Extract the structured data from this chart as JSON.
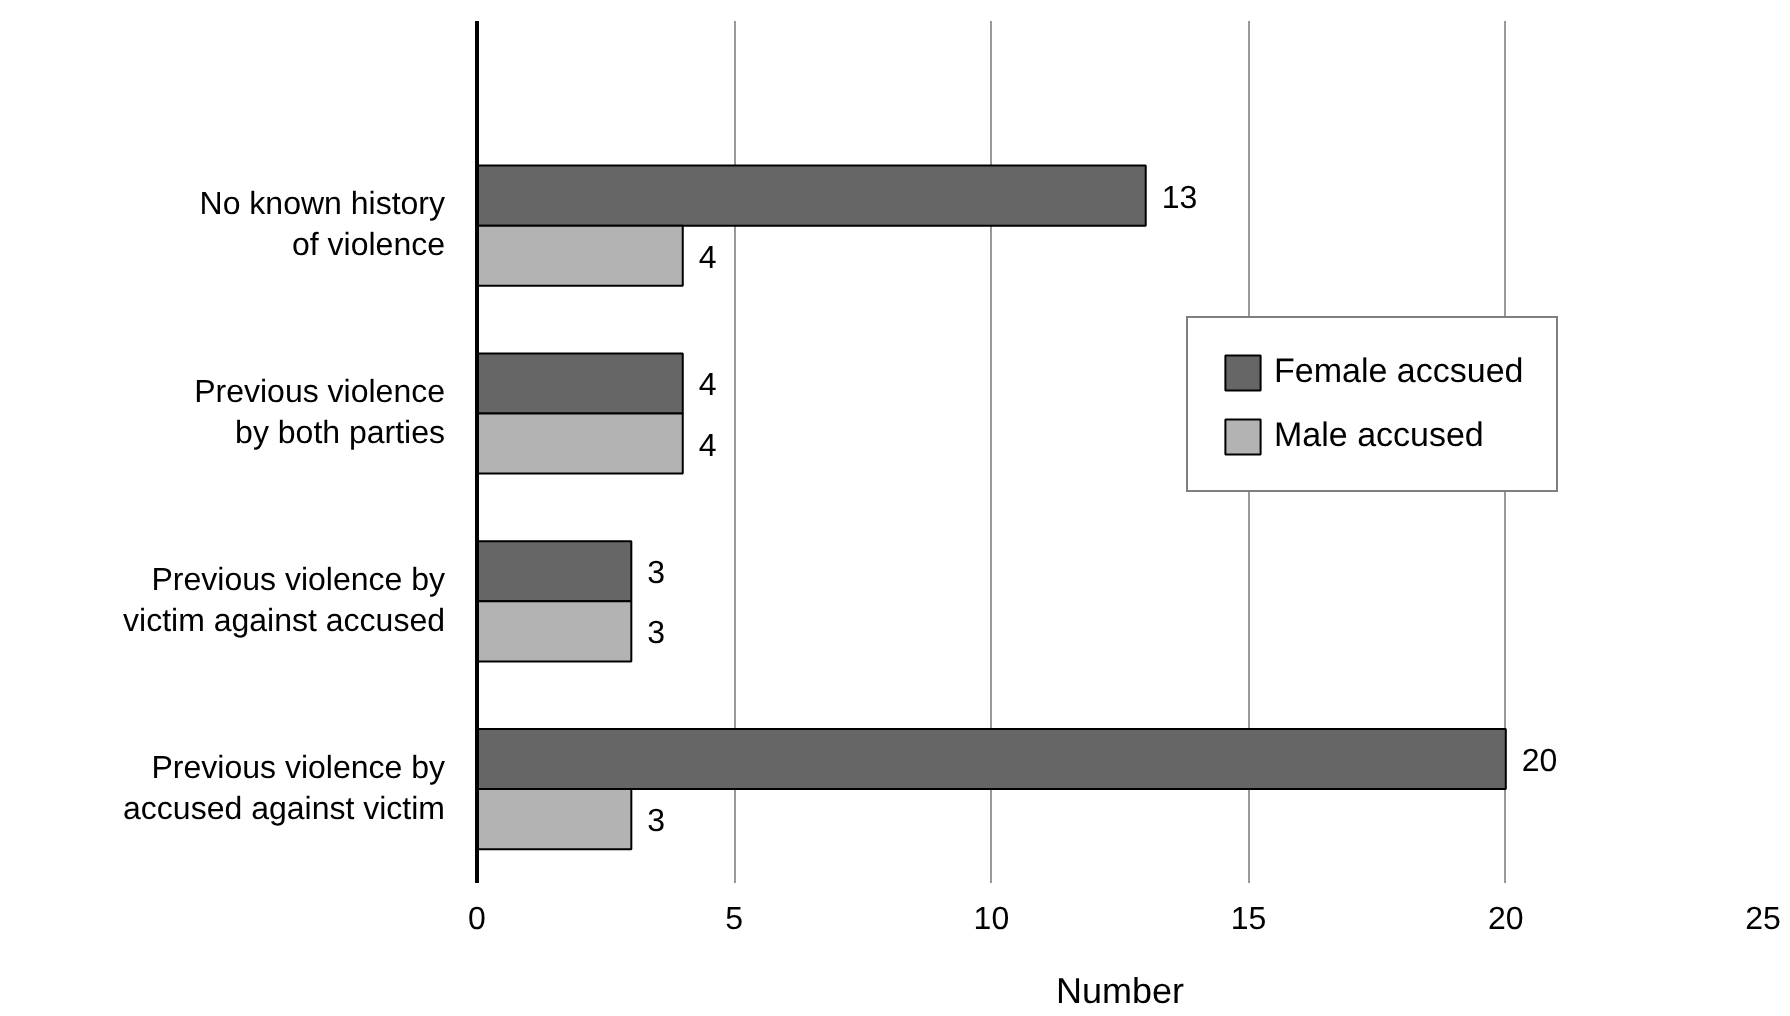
{
  "chart_data": {
    "type": "bar",
    "orientation": "horizontal",
    "xlabel": "Number",
    "categories": [
      "No known history\nof violence",
      "Previous violence\nby both parties",
      "Previous violence by\nvictim against accused",
      "Previous violence by\naccused against victim"
    ],
    "series": [
      {
        "name": "Female accsued",
        "color": "#666666",
        "values": [
          13,
          4,
          3,
          20
        ]
      },
      {
        "name": "Male accused",
        "color": "#b3b3b3",
        "values": [
          4,
          4,
          3,
          3
        ]
      }
    ],
    "xlim": [
      0,
      25
    ],
    "xticks": [
      0,
      5,
      10,
      15,
      20,
      25
    ],
    "grid": "x",
    "legend": "right",
    "data_labels": true
  }
}
